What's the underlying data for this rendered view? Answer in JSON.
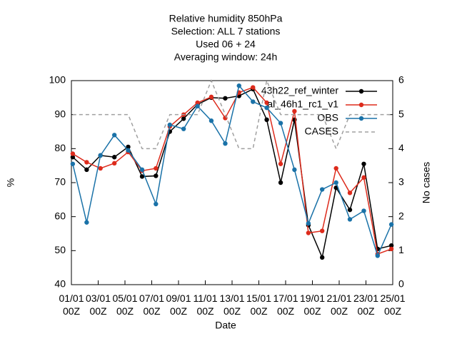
{
  "chart_data": {
    "type": "line",
    "title": [
      "Relative humidity 850hPa",
      "Selection: ALL      7 stations",
      "Used  06  + 24",
      "Averaging window: 24h"
    ],
    "xlabel": "Date",
    "ylabel": "%",
    "y2label": "No cases",
    "x": [
      0.1,
      1.14,
      2.17,
      3.21,
      4.24,
      5.28,
      6.31,
      7.35,
      8.38,
      9.42,
      10.45,
      11.49,
      12.52,
      13.56,
      14.59,
      15.63,
      16.66,
      17.7,
      18.73,
      19.77,
      20.8,
      21.84,
      22.87,
      23.9
    ],
    "xlim": [
      0,
      24
    ],
    "xticks": [
      {
        "value": 0,
        "label": "01/01 00Z"
      },
      {
        "value": 2,
        "label": "03/01 00Z"
      },
      {
        "value": 4,
        "label": "05/01 00Z"
      },
      {
        "value": 6,
        "label": "07/01 00Z"
      },
      {
        "value": 8,
        "label": "09/01 00Z"
      },
      {
        "value": 10,
        "label": "11/01 00Z"
      },
      {
        "value": 12,
        "label": "13/01 00Z"
      },
      {
        "value": 14,
        "label": "15/01 00Z"
      },
      {
        "value": 16,
        "label": "17/01 00Z"
      },
      {
        "value": 18,
        "label": "19/01 00Z"
      },
      {
        "value": 20,
        "label": "21/01 00Z"
      },
      {
        "value": 22,
        "label": "23/01 00Z"
      },
      {
        "value": 24,
        "label": "25/01 00Z"
      }
    ],
    "ylim": [
      40,
      100
    ],
    "yticks": [
      40,
      50,
      60,
      70,
      80,
      90,
      100
    ],
    "y2lim": [
      0,
      6
    ],
    "y2ticks": [
      0,
      1,
      2,
      3,
      4,
      5,
      6
    ],
    "series": [
      {
        "name": "43h22_ref_winter",
        "color": "#000000",
        "values": [
          77.5,
          73.8,
          78,
          77.5,
          80.5,
          71.8,
          72,
          85,
          88.8,
          93,
          95,
          94.8,
          95.5,
          97.5,
          88.5,
          70,
          88.5,
          57.5,
          48,
          68.5,
          62,
          75.5,
          50.5,
          51.5
        ]
      },
      {
        "name": "al_46h1_rc1_v1",
        "color": "#dd2b1c",
        "values": [
          78.5,
          76,
          74.2,
          75.7,
          79,
          73.5,
          74.2,
          86.5,
          90,
          93.5,
          95.2,
          89,
          96.5,
          98,
          93.5,
          75.5,
          91,
          55.2,
          55.8,
          74.2,
          67,
          71.5,
          49,
          50.5
        ]
      },
      {
        "name": "OBS",
        "color": "#1a72a8",
        "values": [
          75.5,
          58.3,
          78,
          84,
          79.5,
          73.8,
          63.7,
          87,
          85.8,
          92.5,
          88.2,
          81.5,
          98.5,
          93.8,
          92,
          87.5,
          73.8,
          58,
          68,
          70,
          59.2,
          61.7,
          48.5,
          57.7
        ]
      },
      {
        "name": "CASES",
        "color": "#a0a0a0",
        "axis": "y2",
        "dashed": true,
        "values": [
          5,
          5,
          5,
          5,
          5,
          4,
          4,
          5,
          5,
          5,
          6,
          5,
          4,
          4,
          6,
          5,
          5,
          5,
          5,
          4,
          5,
          5,
          5,
          5
        ]
      }
    ]
  }
}
